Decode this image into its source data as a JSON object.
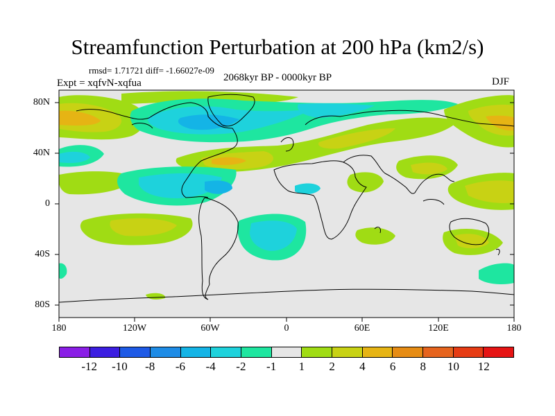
{
  "title": "Streamfunction Perturbation at 200 hPa (km2/s)",
  "stats": "rmsd= 1.71721 diff= -1.66027e-09",
  "experiment": "Expt = xqfvN-xqfua",
  "period": "2068kyr BP - 0000kyr BP",
  "season": "DJF",
  "lat_labels": [
    "80N",
    "40N",
    "0",
    "40S",
    "80S"
  ],
  "lon_labels": [
    "180",
    "120W",
    "60W",
    "0",
    "60E",
    "120E",
    "180"
  ],
  "colorbar": {
    "colors": [
      "#8a1ee6",
      "#3c1ee1",
      "#1e5ae6",
      "#1e8ce6",
      "#14b4e6",
      "#1ed2dc",
      "#1ee6a0",
      "#e6e6e6",
      "#a0dc14",
      "#c8d214",
      "#e6b414",
      "#e68c14",
      "#e6641e",
      "#e63c14",
      "#e61414"
    ],
    "labels": [
      "-12",
      "-10",
      "-8",
      "-6",
      "-4",
      "-2",
      "-1",
      "1",
      "2",
      "4",
      "6",
      "8",
      "10",
      "12"
    ]
  }
}
